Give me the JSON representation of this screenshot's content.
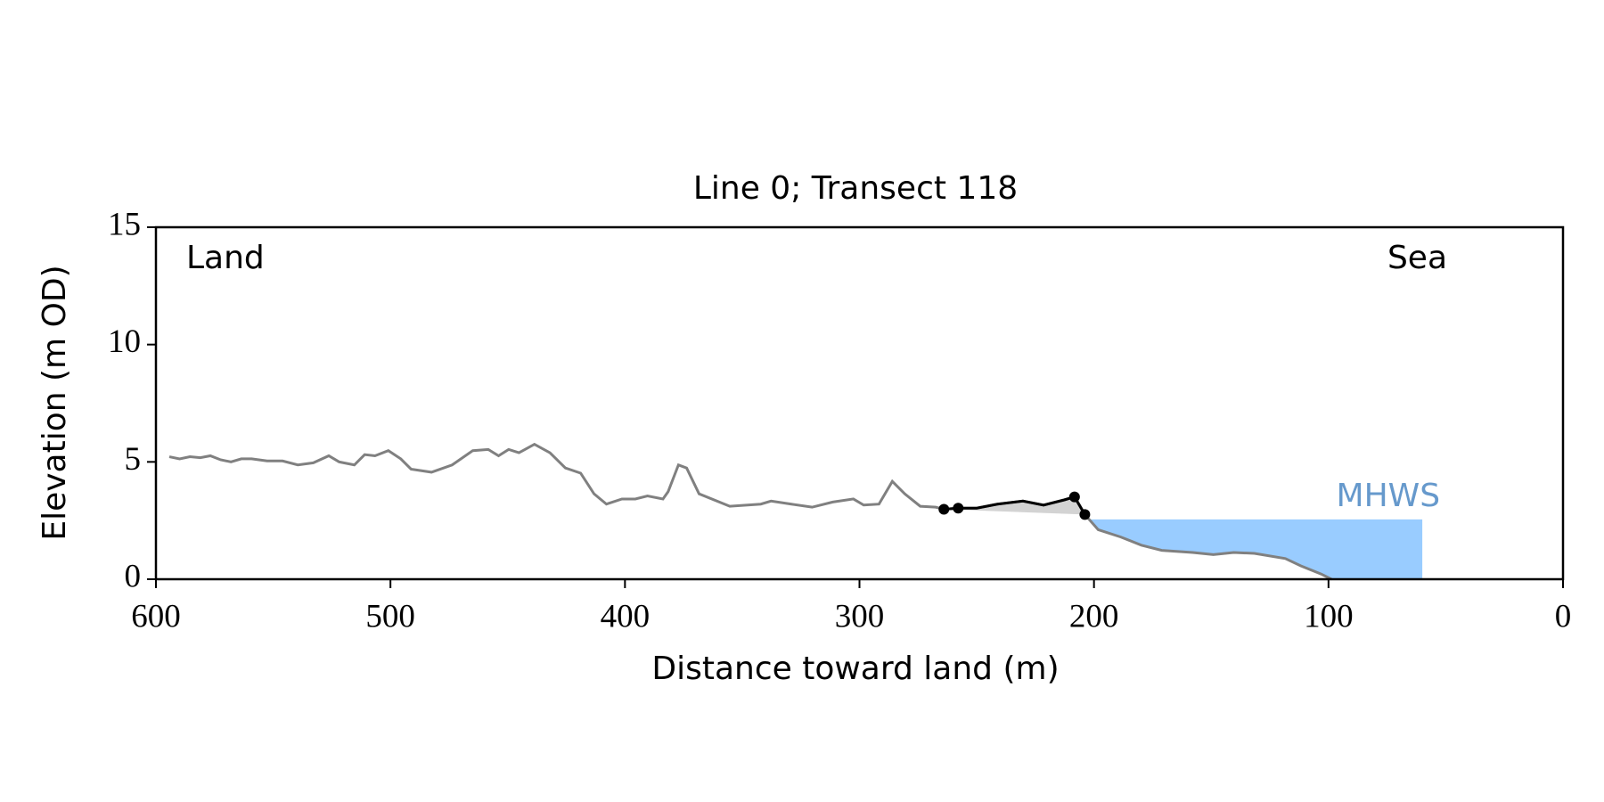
{
  "chart_data": {
    "type": "line",
    "title": "Line 0; Transect 118",
    "xlabel": "Distance toward land (m)",
    "ylabel": "Elevation (m OD)",
    "xlim": [
      600,
      0
    ],
    "ylim": [
      0,
      15
    ],
    "xticks": [
      600,
      500,
      400,
      300,
      200,
      100,
      0
    ],
    "yticks": [
      0,
      5,
      10,
      15
    ],
    "annotations": {
      "left": "Land",
      "right": "Sea"
    },
    "series": [
      {
        "color": "#808080",
        "x": [
          594.3,
          589.9,
          585.5,
          581.1,
          576.8,
          572.4,
          568,
          563.6,
          559.2,
          552.6,
          546,
          539.5,
          532.9,
          526.3,
          521.9,
          515.4,
          511,
          506.6,
          500.9,
          495.6,
          491.2,
          482.5,
          473.7,
          464.9,
          458.3,
          453.9,
          449.6,
          445.2,
          438.6,
          432,
          425.4,
          418.9,
          413.2,
          407.9,
          401.3,
          395.6,
          390.4,
          383.8,
          381.6,
          377.2,
          373.7,
          368.4,
          355.3,
          342.1,
          337.7,
          329,
          320.2,
          311.4,
          302.6,
          298.2,
          291.7,
          286,
          280.7,
          274.1,
          267.5,
          264,
          257.9,
          250,
          241.2,
          230.3,
          221.5,
          212.7,
          208.3,
          203.9,
          198.2,
          188.6,
          179.8,
          171.1,
          157.9,
          149.1,
          140.4,
          131.6,
          118.4,
          111.8,
          103.1,
          98.7
        ],
        "values": [
          5.22,
          5.13,
          5.22,
          5.18,
          5.26,
          5.09,
          5.0,
          5.13,
          5.13,
          5.04,
          5.04,
          4.87,
          4.96,
          5.26,
          5.0,
          4.87,
          5.31,
          5.26,
          5.48,
          5.13,
          4.69,
          4.56,
          4.87,
          5.48,
          5.53,
          5.26,
          5.53,
          5.39,
          5.75,
          5.39,
          4.74,
          4.52,
          3.64,
          3.2,
          3.42,
          3.42,
          3.55,
          3.42,
          3.73,
          4.87,
          4.74,
          3.64,
          3.11,
          3.2,
          3.33,
          3.2,
          3.07,
          3.29,
          3.42,
          3.16,
          3.2,
          4.17,
          3.64,
          3.11,
          3.07,
          2.98,
          3.03,
          3.03,
          3.2,
          3.33,
          3.16,
          3.38,
          3.51,
          2.76,
          2.11,
          1.8,
          1.45,
          1.23,
          1.14,
          1.05,
          1.14,
          1.1,
          0.88,
          0.57,
          0.22,
          0
        ]
      },
      {
        "color": "#000000",
        "fill": "#d3d3d3",
        "x": [
          264,
          257.9,
          250,
          241.2,
          230.3,
          221.5,
          212.7,
          208.3,
          203.9
        ],
        "values": [
          2.98,
          3.03,
          3.03,
          3.2,
          3.33,
          3.16,
          3.38,
          3.51,
          2.76
        ]
      },
      {
        "color": "#000000",
        "marker": true,
        "x": [
          264,
          257.9,
          208.3,
          203.9
        ],
        "values": [
          2.98,
          3.03,
          3.51,
          2.76
        ]
      }
    ],
    "mhws": {
      "label": "MHWS",
      "level": 2.55,
      "extent": [
        202,
        60
      ],
      "color": "#99ccff",
      "label_color": "#6699cc"
    }
  }
}
